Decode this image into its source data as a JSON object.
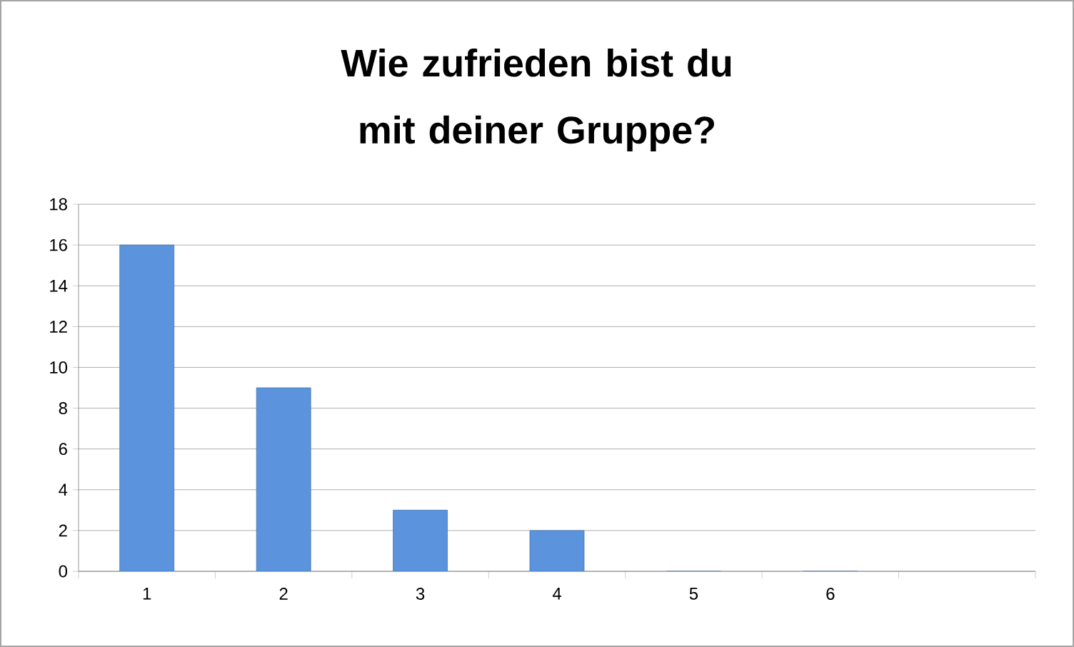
{
  "chart_data": {
    "type": "bar",
    "title": "Wie zufrieden bist du mit deiner Gruppe?",
    "categories": [
      "1",
      "2",
      "3",
      "4",
      "5",
      "6",
      null
    ],
    "values": [
      16,
      9,
      3,
      2,
      0,
      0,
      null
    ],
    "color": "#5b93dc",
    "ylim": [
      0,
      18
    ],
    "yticks": [
      0,
      2,
      4,
      6,
      8,
      10,
      12,
      14,
      16,
      18
    ],
    "grid": "y"
  }
}
